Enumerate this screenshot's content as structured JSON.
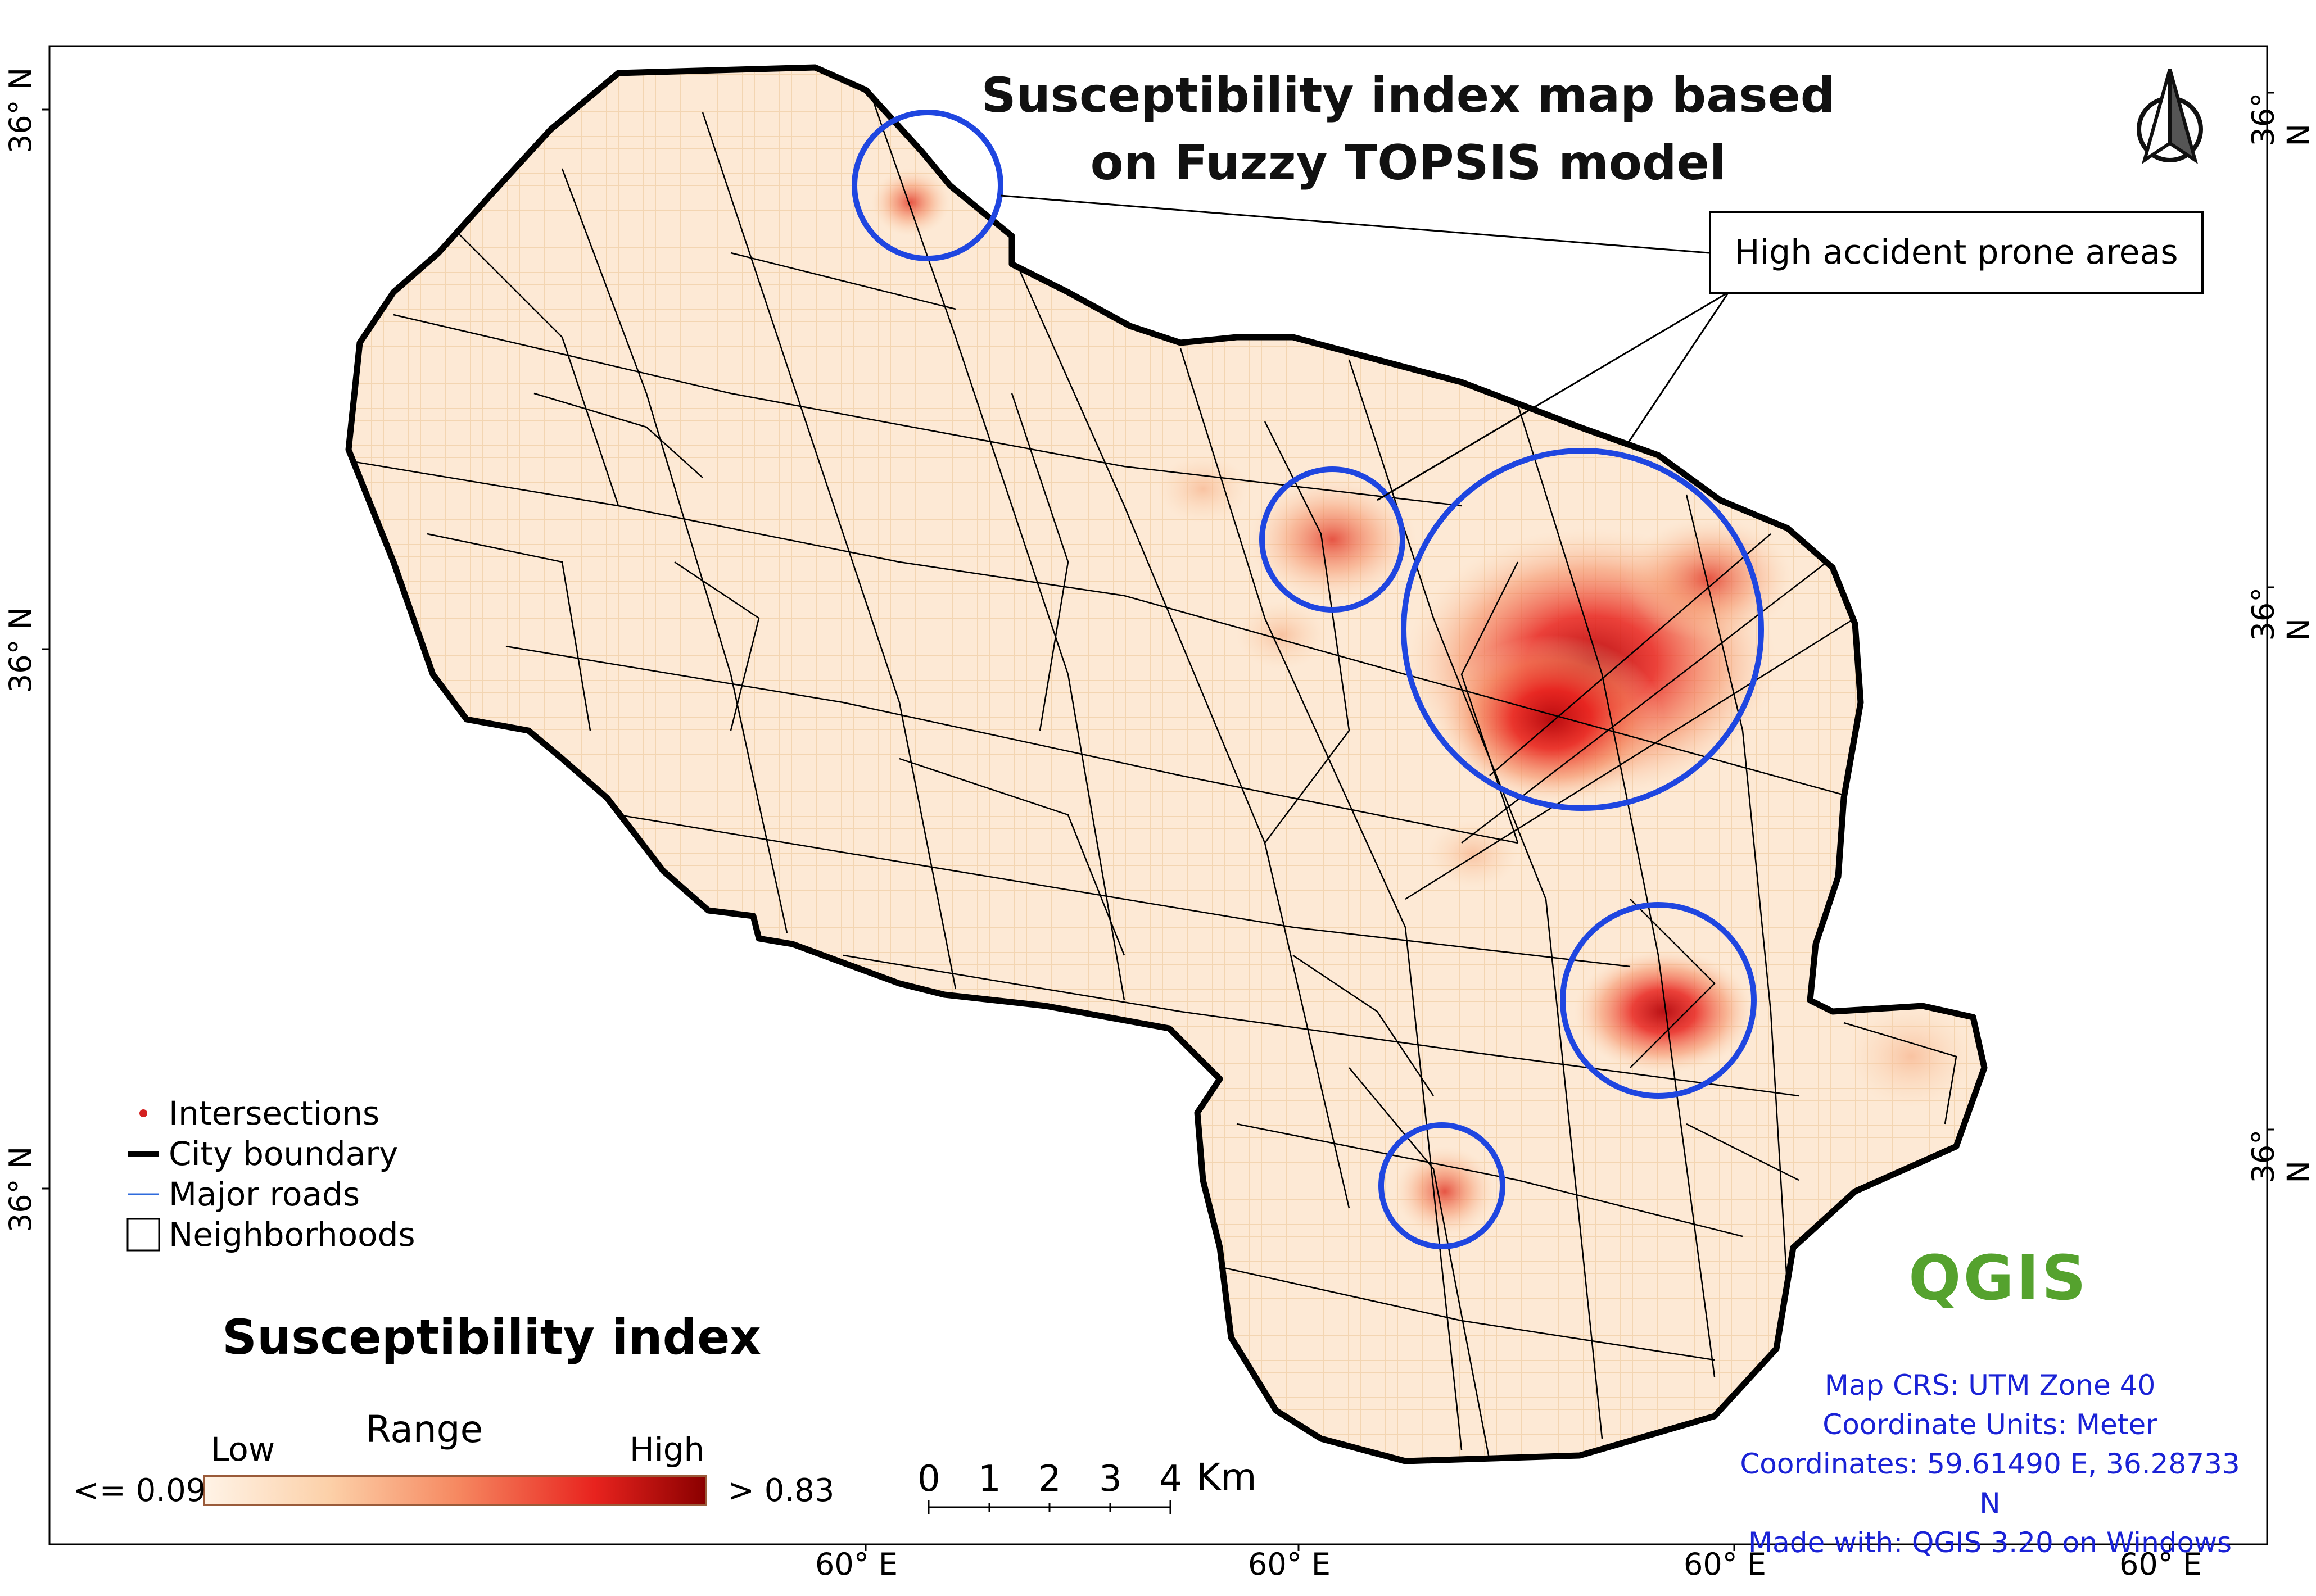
{
  "title": {
    "line1": "Susceptibility index map based",
    "line2": "on Fuzzy TOPSIS model"
  },
  "callout": {
    "label": "High accident prone areas"
  },
  "axes": {
    "left_ticks": [
      "36° N",
      "36° N",
      "36° N"
    ],
    "right_ticks": [
      "36° N",
      "36° N",
      "36° N"
    ],
    "bottom_ticks": [
      "60° E",
      "60° E",
      "60° E",
      "60° E"
    ]
  },
  "legend": {
    "items": [
      {
        "label": "Intersections",
        "symbol": "red-dot"
      },
      {
        "label": "City boundary",
        "symbol": "thick-black-line"
      },
      {
        "label": "Major roads",
        "symbol": "blue-line"
      },
      {
        "label": "Neighborhoods",
        "symbol": "square-outline"
      }
    ],
    "colors": {
      "intersection": "#d42020",
      "boundary": "#000000",
      "major_road": "#2f6bdc"
    }
  },
  "susceptibility_index": {
    "title": "Susceptibility index",
    "range_title": "Range",
    "low_label": "Low",
    "high_label": "High",
    "min_value": "<= 0.09",
    "max_value": "> 0.83",
    "colors": [
      "#fff3e6",
      "#fcd0a8",
      "#f68a62",
      "#e8231e",
      "#8b0000"
    ]
  },
  "scale_bar": {
    "ticks": [
      "0",
      "1",
      "2",
      "3",
      "4"
    ],
    "unit": "Km"
  },
  "map_meta": {
    "crs": "Map CRS: UTM Zone 40",
    "units": "Coordinate Units: Meter",
    "coordinates": "Coordinates: 59.61490 E, 36.28733 N",
    "software": "Made with: QGIS 3.20 on Windows"
  },
  "logo": {
    "text": "QGIS"
  },
  "hotspot_color": "#1f46e0"
}
